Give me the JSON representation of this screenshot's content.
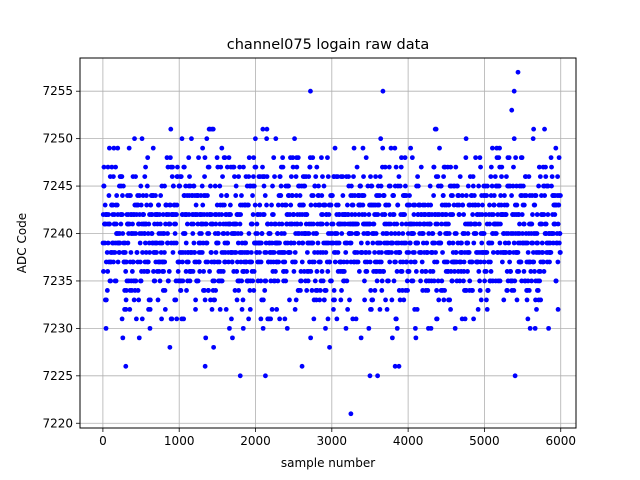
{
  "chart_data": {
    "type": "scatter",
    "title": "channel075 logain raw data",
    "xlabel": "sample number",
    "ylabel": "ADC Code",
    "xlim": [
      -300,
      6200
    ],
    "ylim": [
      7219.5,
      7258.5
    ],
    "x_ticks": [
      0,
      1000,
      2000,
      3000,
      4000,
      5000,
      6000
    ],
    "y_ticks": [
      7220,
      7225,
      7230,
      7235,
      7240,
      7245,
      7250,
      7255
    ],
    "grid": true,
    "legend": "none",
    "marker_color": "#0000ff",
    "series": [
      {
        "sample_count": 6000,
        "x_range": [
          0,
          5999
        ],
        "typical_value": 7240,
        "dense_range": [
          7233,
          7247
        ],
        "sparse_range": [
          7225,
          7253
        ],
        "notable_points": [
          {
            "x": 2720,
            "y": 7255
          },
          {
            "x": 3670,
            "y": 7255
          },
          {
            "x": 5440,
            "y": 7257
          },
          {
            "x": 5390,
            "y": 7255
          },
          {
            "x": 3250,
            "y": 7221
          },
          {
            "x": 1800,
            "y": 7225
          },
          {
            "x": 2130,
            "y": 7225
          },
          {
            "x": 3500,
            "y": 7225
          },
          {
            "x": 3600,
            "y": 7225
          },
          {
            "x": 300,
            "y": 7226
          },
          {
            "x": 1340,
            "y": 7226
          },
          {
            "x": 2610,
            "y": 7226
          },
          {
            "x": 3830,
            "y": 7226
          },
          {
            "x": 3880,
            "y": 7226
          }
        ]
      }
    ]
  }
}
